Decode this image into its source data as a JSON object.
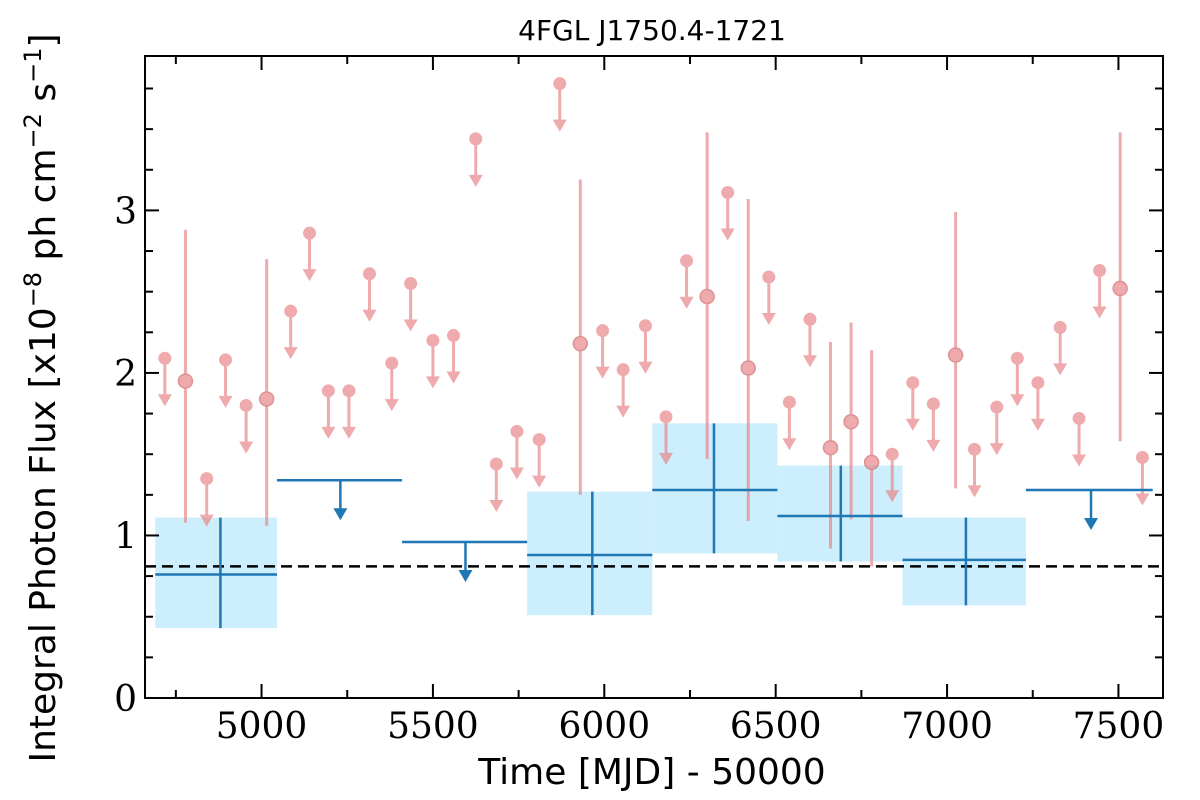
{
  "chart_data": {
    "type": "scatter",
    "title": "4FGL J1750.4-1721",
    "xlabel": "Time [MJD] - 50000",
    "ylabel": "Integral Photon Flux [x10",
    "ylabel_exp1": "−8",
    "ylabel_mid": " ph cm",
    "ylabel_exp2": "−2",
    "ylabel_mid2": " s",
    "ylabel_exp3": "−1",
    "ylabel_end": "]",
    "xlim": [
      4660,
      7630
    ],
    "ylim": [
      0,
      3.95
    ],
    "xticks": [
      5000,
      5500,
      6000,
      6500,
      7000,
      7500
    ],
    "yticks": [
      0,
      1,
      2,
      3
    ],
    "baseline_flux": 0.81,
    "colors": {
      "short_bins": "#e8878a",
      "long_bins": "#1f77b4",
      "long_bin_band": "#cdeefc",
      "baseline": "#000000"
    },
    "short_bin_upper_limits": [
      {
        "x": 4718,
        "y": 2.09
      },
      {
        "x": 4840,
        "y": 1.35
      },
      {
        "x": 4895,
        "y": 2.08
      },
      {
        "x": 4955,
        "y": 1.8
      },
      {
        "x": 5085,
        "y": 2.38
      },
      {
        "x": 5140,
        "y": 2.86
      },
      {
        "x": 5195,
        "y": 1.89
      },
      {
        "x": 5255,
        "y": 1.89
      },
      {
        "x": 5315,
        "y": 2.61
      },
      {
        "x": 5380,
        "y": 2.06
      },
      {
        "x": 5435,
        "y": 2.55
      },
      {
        "x": 5500,
        "y": 2.2
      },
      {
        "x": 5560,
        "y": 2.23
      },
      {
        "x": 5625,
        "y": 3.44
      },
      {
        "x": 5685,
        "y": 1.44
      },
      {
        "x": 5745,
        "y": 1.64
      },
      {
        "x": 5810,
        "y": 1.59
      },
      {
        "x": 5870,
        "y": 3.78
      },
      {
        "x": 5995,
        "y": 2.26
      },
      {
        "x": 6055,
        "y": 2.02
      },
      {
        "x": 6120,
        "y": 2.29
      },
      {
        "x": 6180,
        "y": 1.73
      },
      {
        "x": 6240,
        "y": 2.69
      },
      {
        "x": 6360,
        "y": 3.11
      },
      {
        "x": 6480,
        "y": 2.59
      },
      {
        "x": 6540,
        "y": 1.82
      },
      {
        "x": 6600,
        "y": 2.33
      },
      {
        "x": 6840,
        "y": 1.5
      },
      {
        "x": 6900,
        "y": 1.94
      },
      {
        "x": 6960,
        "y": 1.81
      },
      {
        "x": 7080,
        "y": 1.53
      },
      {
        "x": 7145,
        "y": 1.79
      },
      {
        "x": 7205,
        "y": 2.09
      },
      {
        "x": 7265,
        "y": 1.94
      },
      {
        "x": 7330,
        "y": 2.28
      },
      {
        "x": 7385,
        "y": 1.72
      },
      {
        "x": 7445,
        "y": 2.63
      },
      {
        "x": 7570,
        "y": 1.48
      }
    ],
    "short_bin_detections": [
      {
        "x": 4778,
        "y": 1.95,
        "ylow": 1.08,
        "yhigh": 2.88
      },
      {
        "x": 5015,
        "y": 1.84,
        "ylow": 1.06,
        "yhigh": 2.7
      },
      {
        "x": 5930,
        "y": 2.18,
        "ylow": 1.25,
        "yhigh": 3.19
      },
      {
        "x": 6300,
        "y": 2.47,
        "ylow": 1.47,
        "yhigh": 3.48
      },
      {
        "x": 6420,
        "y": 2.03,
        "ylow": 1.09,
        "yhigh": 3.07
      },
      {
        "x": 6660,
        "y": 1.54,
        "ylow": 0.92,
        "yhigh": 2.19
      },
      {
        "x": 6720,
        "y": 1.7,
        "ylow": 1.1,
        "yhigh": 2.31
      },
      {
        "x": 6780,
        "y": 1.45,
        "ylow": 0.81,
        "yhigh": 2.14
      },
      {
        "x": 7025,
        "y": 2.11,
        "ylow": 1.29,
        "yhigh": 2.99
      },
      {
        "x": 7505,
        "y": 2.52,
        "ylow": 1.58,
        "yhigh": 3.48
      }
    ],
    "long_bin_detections": [
      {
        "x": 4880,
        "xmin": 4690,
        "xmax": 5045,
        "y": 0.76,
        "ylow": 0.43,
        "yhigh": 1.11
      },
      {
        "x": 5965,
        "xmin": 5775,
        "xmax": 6140,
        "y": 0.88,
        "ylow": 0.51,
        "yhigh": 1.27
      },
      {
        "x": 6320,
        "xmin": 6140,
        "xmax": 6505,
        "y": 1.28,
        "ylow": 0.89,
        "yhigh": 1.69
      },
      {
        "x": 6690,
        "xmin": 6505,
        "xmax": 6870,
        "y": 1.12,
        "ylow": 0.84,
        "yhigh": 1.43
      },
      {
        "x": 7055,
        "xmin": 6870,
        "xmax": 7230,
        "y": 0.85,
        "ylow": 0.57,
        "yhigh": 1.11
      }
    ],
    "long_bin_upper_limits": [
      {
        "x": 5230,
        "xmin": 5045,
        "xmax": 5410,
        "y": 1.34
      },
      {
        "x": 5595,
        "xmin": 5410,
        "xmax": 5775,
        "y": 0.96
      },
      {
        "x": 7420,
        "xmin": 7230,
        "xmax": 7600,
        "y": 1.28
      }
    ]
  }
}
